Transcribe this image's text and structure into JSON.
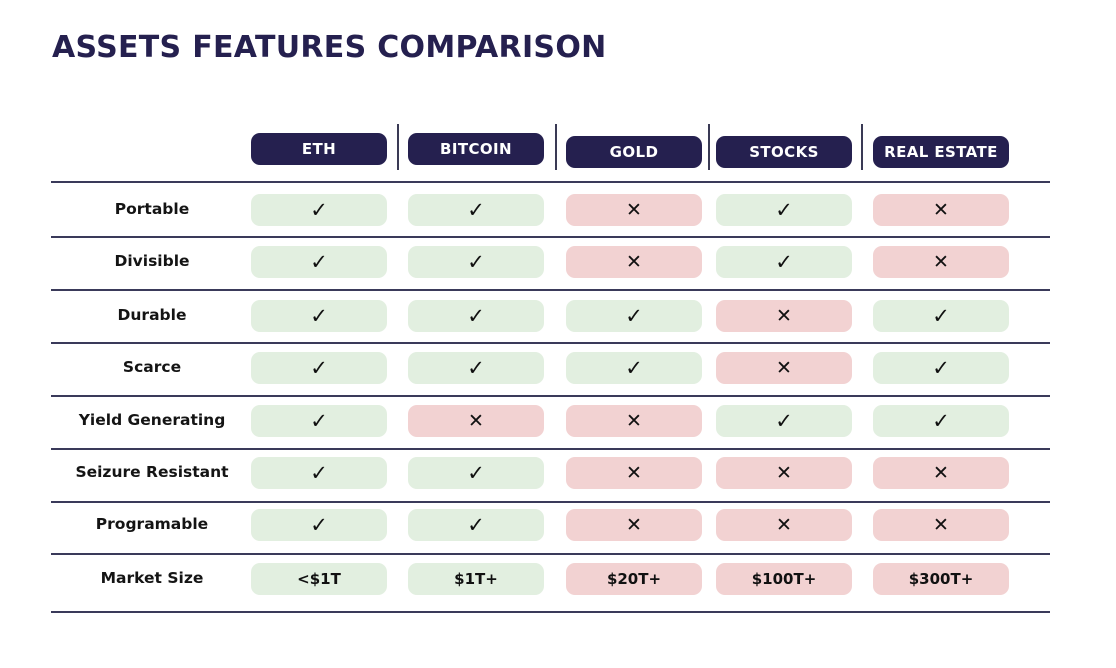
{
  "chart_data": {
    "type": "table",
    "title": "ASSETS FEATURES COMPARISON",
    "columns": [
      "ETH",
      "BITCOIN",
      "GOLD",
      "STOCKS",
      "REAL ESTATE"
    ],
    "rows": [
      {
        "label": "Portable",
        "values": [
          "yes",
          "yes",
          "no",
          "yes",
          "no"
        ]
      },
      {
        "label": "Divisible",
        "values": [
          "yes",
          "yes",
          "no",
          "yes",
          "no"
        ]
      },
      {
        "label": "Durable",
        "values": [
          "yes",
          "yes",
          "yes",
          "no",
          "yes"
        ]
      },
      {
        "label": "Scarce",
        "values": [
          "yes",
          "yes",
          "yes",
          "no",
          "yes"
        ]
      },
      {
        "label": "Yield Generating",
        "values": [
          "yes",
          "no",
          "no",
          "yes",
          "yes"
        ]
      },
      {
        "label": "Seizure Resistant",
        "values": [
          "yes",
          "yes",
          "no",
          "no",
          "no"
        ]
      },
      {
        "label": "Programable",
        "values": [
          "yes",
          "yes",
          "no",
          "no",
          "no"
        ]
      }
    ],
    "market_size": {
      "label": "Market Size",
      "values": [
        "<$1T",
        "$1T+",
        "$20T+",
        "$100T+",
        "$300T+"
      ],
      "status": [
        "yes",
        "yes",
        "no",
        "no",
        "no"
      ]
    },
    "colors": {
      "header": "#25204f",
      "yes_fill": "#e2efe0",
      "no_fill": "#f2d2d2",
      "title": "#25204f"
    },
    "marks": {
      "yes": "✓",
      "no": "✕"
    }
  }
}
